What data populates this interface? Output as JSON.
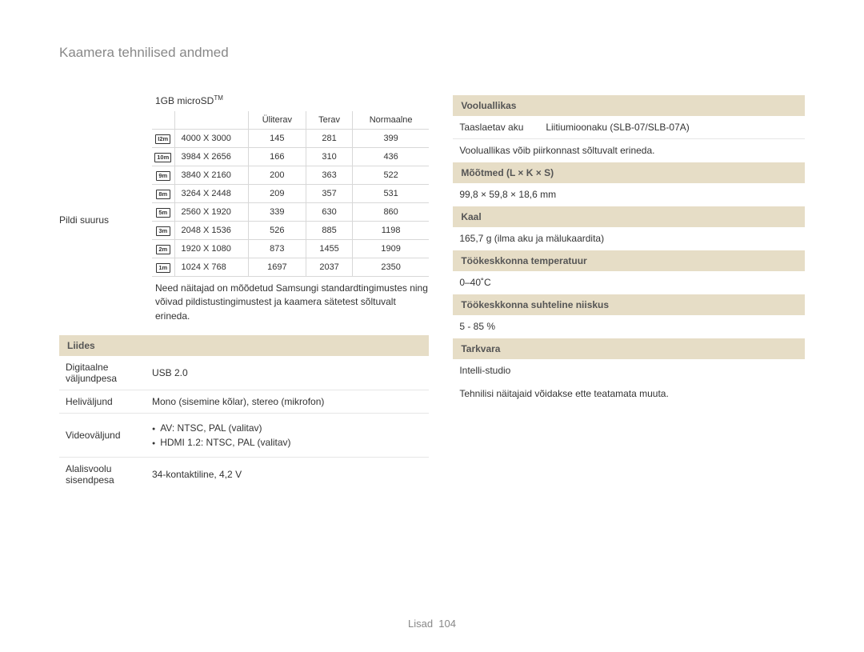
{
  "title": "Kaamera tehnilised andmed",
  "footer_label": "Lisad",
  "footer_page": "104",
  "left": {
    "microsd_label": "1GB microSD",
    "microsd_tm": "TM",
    "pildi_suurus": "Pildi suurus",
    "columns": [
      "Üliterav",
      "Terav",
      "Normaalne"
    ],
    "icons": [
      "I2m",
      "10m",
      "9m",
      "8m",
      "5m",
      "3m",
      "2m",
      "1m"
    ],
    "rows": [
      {
        "res": "4000 X 3000",
        "v": [
          "145",
          "281",
          "399"
        ]
      },
      {
        "res": "3984 X 2656",
        "v": [
          "166",
          "310",
          "436"
        ]
      },
      {
        "res": "3840 X 2160",
        "v": [
          "200",
          "363",
          "522"
        ]
      },
      {
        "res": "3264 X 2448",
        "v": [
          "209",
          "357",
          "531"
        ]
      },
      {
        "res": "2560 X 1920",
        "v": [
          "339",
          "630",
          "860"
        ]
      },
      {
        "res": "2048 X 1536",
        "v": [
          "526",
          "885",
          "1198"
        ]
      },
      {
        "res": "1920 X 1080",
        "v": [
          "873",
          "1455",
          "1909"
        ]
      },
      {
        "res": "1024 X 768",
        "v": [
          "1697",
          "2037",
          "2350"
        ]
      }
    ],
    "note": "Need näitajad on mõõdetud Samsungi standardtingimustes ning võivad pildistustingimustest ja kaamera sätetest sõltuvalt erineda.",
    "liides_header": "Liides",
    "liides": [
      {
        "label": "Digitaalne väljundpesa",
        "value": "USB 2.0"
      },
      {
        "label": "Heliväljund",
        "value": "Mono (sisemine kõlar), stereo (mikrofon)"
      }
    ],
    "video_label": "Videoväljund",
    "video_items": [
      "AV: NTSC, PAL (valitav)",
      "HDMI 1.2: NTSC, PAL (valitav)"
    ],
    "dc": {
      "label": "Alalisvoolu sisendpesa",
      "value": "34-kontaktiline, 4,2 V"
    }
  },
  "right": {
    "headers": {
      "vooluallikas": "Vooluallikas",
      "mootmed": "Mõõtmed (L × K × S)",
      "kaal": "Kaal",
      "temp": "Töökeskkonna temperatuur",
      "niiskus": "Töökeskkonna suhteline niiskus",
      "tarkvara": "Tarkvara"
    },
    "battery": {
      "label": "Taaslaetav aku",
      "value": "Liitiumioonaku (SLB-07/SLB-07A)"
    },
    "battery_note": "Vooluallikas võib piirkonnast sõltuvalt erineda.",
    "mootmed_value": "99,8 × 59,8 × 18,6 mm",
    "kaal_value": "165,7 g (ilma aku ja mälukaardita)",
    "temp_value": "0–40˚C",
    "niiskus_value": "5 - 85 %",
    "tarkvara_value": "Intelli-studio",
    "final_note": "Tehnilisi näitajaid võidakse ette teatamata muuta."
  }
}
